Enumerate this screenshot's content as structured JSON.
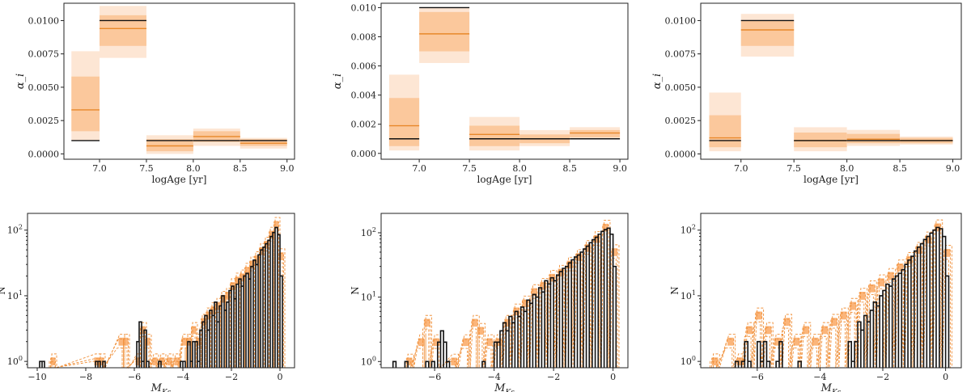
{
  "colors": {
    "truth": "#111111",
    "median": "#e8882a",
    "band_inner": "#fbc89c",
    "band_outer": "#fde6d4",
    "hist_fill": "#fbb57a",
    "hist_dash": "#f0903a"
  },
  "chart_data": [
    {
      "type": "step",
      "panel": "top-left",
      "xlabel": "logAge [yr]",
      "ylabel": "α_i",
      "xlim": [
        6.62,
        9.08
      ],
      "ylim": [
        -0.0004,
        0.0113
      ],
      "xticks": [
        "7.0",
        "7.5",
        "8.0",
        "8.5",
        "9.0"
      ],
      "yticks": [
        "0.0000",
        "0.0025",
        "0.0050",
        "0.0075",
        "0.0100"
      ],
      "bins": [
        {
          "x0": 6.7,
          "x1": 7.0,
          "truth": 0.001,
          "median": 0.0033,
          "inner": [
            0.0017,
            0.0058
          ],
          "outer": [
            0.001,
            0.0077
          ]
        },
        {
          "x0": 7.0,
          "x1": 7.5,
          "truth": 0.01,
          "median": 0.0094,
          "inner": [
            0.0081,
            0.0104
          ],
          "outer": [
            0.0072,
            0.0111
          ]
        },
        {
          "x0": 7.5,
          "x1": 8.0,
          "truth": 0.001,
          "median": 0.0006,
          "inner": [
            0.0002,
            0.0011
          ],
          "outer": [
            0.0,
            0.0014
          ]
        },
        {
          "x0": 8.0,
          "x1": 8.5,
          "truth": 0.001,
          "median": 0.0013,
          "inner": [
            0.0009,
            0.0017
          ],
          "outer": [
            0.0006,
            0.0019
          ]
        },
        {
          "x0": 8.5,
          "x1": 9.0,
          "truth": 0.001,
          "median": 0.0008,
          "inner": [
            0.0006,
            0.0011
          ],
          "outer": [
            0.0004,
            0.0012
          ]
        }
      ]
    },
    {
      "type": "step",
      "panel": "top-middle",
      "xlabel": "logAge [yr]",
      "ylabel": "α_i",
      "xlim": [
        6.62,
        9.08
      ],
      "ylim": [
        -0.0004,
        0.0103
      ],
      "xticks": [
        "7.0",
        "7.5",
        "8.0",
        "8.5",
        "9.0"
      ],
      "yticks": [
        "0.000",
        "0.002",
        "0.004",
        "0.006",
        "0.008",
        "0.010"
      ],
      "bins": [
        {
          "x0": 6.7,
          "x1": 7.0,
          "truth": 0.001,
          "median": 0.0019,
          "inner": [
            0.0005,
            0.0038
          ],
          "outer": [
            0.0002,
            0.0054
          ]
        },
        {
          "x0": 7.0,
          "x1": 7.5,
          "truth": 0.01,
          "median": 0.0082,
          "inner": [
            0.007,
            0.0097
          ],
          "outer": [
            0.0062,
            0.01
          ]
        },
        {
          "x0": 7.5,
          "x1": 8.0,
          "truth": 0.001,
          "median": 0.0013,
          "inner": [
            0.0005,
            0.0019
          ],
          "outer": [
            0.0002,
            0.0025
          ]
        },
        {
          "x0": 8.0,
          "x1": 8.5,
          "truth": 0.001,
          "median": 0.001,
          "inner": [
            0.0007,
            0.0013
          ],
          "outer": [
            0.0005,
            0.0016
          ]
        },
        {
          "x0": 8.5,
          "x1": 9.0,
          "truth": 0.001,
          "median": 0.0014,
          "inner": [
            0.0011,
            0.0016
          ],
          "outer": [
            0.001,
            0.0018
          ]
        }
      ]
    },
    {
      "type": "step",
      "panel": "top-right",
      "xlabel": "logAge [yr]",
      "ylabel": "α_i",
      "xlim": [
        6.62,
        9.08
      ],
      "ylim": [
        -0.0004,
        0.0113
      ],
      "xticks": [
        "7.0",
        "7.5",
        "8.0",
        "8.5",
        "9.0"
      ],
      "yticks": [
        "0.0000",
        "0.0025",
        "0.0050",
        "0.0075",
        "0.0100"
      ],
      "bins": [
        {
          "x0": 6.7,
          "x1": 7.0,
          "truth": 0.001,
          "median": 0.0012,
          "inner": [
            0.0005,
            0.0029
          ],
          "outer": [
            0.0002,
            0.0046
          ]
        },
        {
          "x0": 7.0,
          "x1": 7.5,
          "truth": 0.01,
          "median": 0.0093,
          "inner": [
            0.0081,
            0.01
          ],
          "outer": [
            0.0073,
            0.0105
          ]
        },
        {
          "x0": 7.5,
          "x1": 8.0,
          "truth": 0.001,
          "median": 0.001,
          "inner": [
            0.0005,
            0.0016
          ],
          "outer": [
            0.0002,
            0.002
          ]
        },
        {
          "x0": 8.0,
          "x1": 8.5,
          "truth": 0.001,
          "median": 0.0011,
          "inner": [
            0.0008,
            0.0015
          ],
          "outer": [
            0.0006,
            0.0018
          ]
        },
        {
          "x0": 8.5,
          "x1": 9.0,
          "truth": 0.001,
          "median": 0.001,
          "inner": [
            0.0008,
            0.0012
          ],
          "outer": [
            0.0007,
            0.0013
          ]
        }
      ]
    },
    {
      "type": "histogram",
      "panel": "bottom-left",
      "xlabel": "M_Ks",
      "ylabel": "N",
      "yscale": "log",
      "xlim": [
        -10.4,
        0.6
      ],
      "ylim": [
        0.8,
        180
      ],
      "xticks": [
        -10,
        -8,
        -6,
        -4,
        -2,
        0
      ],
      "yticks": [
        1,
        10,
        100
      ],
      "observed": [
        [
          -9.85,
          1
        ],
        [
          -9.75,
          1
        ],
        [
          -7.55,
          1
        ],
        [
          -7.45,
          1
        ],
        [
          -7.25,
          1
        ],
        [
          -5.85,
          2
        ],
        [
          -5.75,
          4
        ],
        [
          -5.65,
          1
        ],
        [
          -5.55,
          3
        ],
        [
          -5.45,
          1
        ],
        [
          -4.95,
          1
        ],
        [
          -4.05,
          1
        ],
        [
          -3.95,
          1
        ],
        [
          -3.75,
          2
        ],
        [
          -3.65,
          1
        ],
        [
          -3.55,
          2
        ],
        [
          -3.45,
          2
        ],
        [
          -3.35,
          1
        ],
        [
          -3.25,
          3
        ],
        [
          -3.15,
          4
        ],
        [
          -3.05,
          5
        ],
        [
          -2.95,
          3
        ],
        [
          -2.85,
          6
        ],
        [
          -2.75,
          5
        ],
        [
          -2.65,
          8
        ],
        [
          -2.55,
          4
        ],
        [
          -2.45,
          7
        ],
        [
          -2.35,
          10
        ],
        [
          -2.25,
          6
        ],
        [
          -2.15,
          8
        ],
        [
          -2.05,
          12
        ],
        [
          -1.95,
          14
        ],
        [
          -1.85,
          9
        ],
        [
          -1.75,
          15
        ],
        [
          -1.65,
          18
        ],
        [
          -1.55,
          14
        ],
        [
          -1.45,
          20
        ],
        [
          -1.35,
          22
        ],
        [
          -1.25,
          18
        ],
        [
          -1.15,
          28
        ],
        [
          -1.05,
          35
        ],
        [
          -0.95,
          30
        ],
        [
          -0.85,
          42
        ],
        [
          -0.75,
          50
        ],
        [
          -0.65,
          55
        ],
        [
          -0.55,
          62
        ],
        [
          -0.45,
          70
        ],
        [
          -0.35,
          80
        ],
        [
          -0.25,
          92
        ],
        [
          -0.15,
          110
        ],
        [
          -0.05,
          85
        ],
        [
          0.05,
          20
        ]
      ],
      "model": [
        [
          -9.35,
          1
        ],
        [
          -7.55,
          1
        ],
        [
          -7.35,
          1
        ],
        [
          -6.55,
          2
        ],
        [
          -6.35,
          2
        ],
        [
          -5.85,
          1
        ],
        [
          -5.65,
          3
        ],
        [
          -5.45,
          2
        ],
        [
          -5.15,
          1
        ],
        [
          -4.85,
          1
        ],
        [
          -4.55,
          1
        ],
        [
          -4.25,
          1
        ],
        [
          -3.95,
          2
        ],
        [
          -3.75,
          2
        ],
        [
          -3.55,
          3
        ],
        [
          -3.35,
          2
        ],
        [
          -3.15,
          4
        ],
        [
          -2.95,
          5
        ],
        [
          -2.75,
          6
        ],
        [
          -2.55,
          7
        ],
        [
          -2.35,
          9
        ],
        [
          -2.15,
          10
        ],
        [
          -1.95,
          14
        ],
        [
          -1.75,
          17
        ],
        [
          -1.55,
          19
        ],
        [
          -1.35,
          24
        ],
        [
          -1.15,
          30
        ],
        [
          -0.95,
          36
        ],
        [
          -0.75,
          48
        ],
        [
          -0.55,
          60
        ],
        [
          -0.35,
          85
        ],
        [
          -0.15,
          120
        ],
        [
          0.05,
          40
        ]
      ]
    },
    {
      "type": "histogram",
      "panel": "bottom-middle",
      "xlabel": "M_Ks",
      "ylabel": "N",
      "yscale": "log",
      "xlim": [
        -7.8,
        0.5
      ],
      "ylim": [
        0.8,
        200
      ],
      "xticks": [
        -6,
        -4,
        -2,
        0
      ],
      "yticks": [
        1,
        10,
        100
      ],
      "observed": [
        [
          -7.35,
          1
        ],
        [
          -6.95,
          1
        ],
        [
          -6.25,
          1
        ],
        [
          -6.05,
          1
        ],
        [
          -5.85,
          2
        ],
        [
          -5.75,
          3
        ],
        [
          -5.65,
          2
        ],
        [
          -5.55,
          1
        ],
        [
          -4.35,
          1
        ],
        [
          -3.95,
          2
        ],
        [
          -3.85,
          2
        ],
        [
          -3.75,
          3
        ],
        [
          -3.65,
          4
        ],
        [
          -3.55,
          3
        ],
        [
          -3.45,
          5
        ],
        [
          -3.35,
          4
        ],
        [
          -3.25,
          6
        ],
        [
          -3.15,
          5
        ],
        [
          -3.05,
          7
        ],
        [
          -2.95,
          6
        ],
        [
          -2.85,
          9
        ],
        [
          -2.75,
          8
        ],
        [
          -2.65,
          11
        ],
        [
          -2.55,
          10
        ],
        [
          -2.45,
          14
        ],
        [
          -2.35,
          12
        ],
        [
          -2.25,
          18
        ],
        [
          -2.15,
          16
        ],
        [
          -2.05,
          20
        ],
        [
          -1.95,
          18
        ],
        [
          -1.85,
          22
        ],
        [
          -1.75,
          25
        ],
        [
          -1.65,
          28
        ],
        [
          -1.55,
          30
        ],
        [
          -1.45,
          34
        ],
        [
          -1.35,
          38
        ],
        [
          -1.25,
          42
        ],
        [
          -1.15,
          45
        ],
        [
          -1.05,
          50
        ],
        [
          -0.95,
          56
        ],
        [
          -0.85,
          62
        ],
        [
          -0.75,
          70
        ],
        [
          -0.65,
          78
        ],
        [
          -0.55,
          85
        ],
        [
          -0.45,
          95
        ],
        [
          -0.35,
          105
        ],
        [
          -0.25,
          112
        ],
        [
          -0.15,
          118
        ],
        [
          -0.05,
          95
        ],
        [
          0.05,
          30
        ]
      ],
      "model": [
        [
          -6.85,
          1
        ],
        [
          -6.45,
          2
        ],
        [
          -6.25,
          4
        ],
        [
          -5.95,
          2
        ],
        [
          -5.35,
          1
        ],
        [
          -4.95,
          2
        ],
        [
          -4.65,
          4
        ],
        [
          -4.45,
          3
        ],
        [
          -4.15,
          2
        ],
        [
          -3.85,
          2
        ],
        [
          -3.55,
          4
        ],
        [
          -3.25,
          6
        ],
        [
          -2.95,
          8
        ],
        [
          -2.65,
          12
        ],
        [
          -2.35,
          15
        ],
        [
          -2.05,
          20
        ],
        [
          -1.75,
          24
        ],
        [
          -1.45,
          32
        ],
        [
          -1.15,
          42
        ],
        [
          -0.85,
          58
        ],
        [
          -0.55,
          80
        ],
        [
          -0.25,
          120
        ],
        [
          0.05,
          50
        ]
      ]
    },
    {
      "type": "histogram",
      "panel": "bottom-right",
      "xlabel": "M_Ks",
      "ylabel": "N",
      "yscale": "log",
      "xlim": [
        -7.8,
        0.5
      ],
      "ylim": [
        0.8,
        180
      ],
      "xticks": [
        -6,
        -4,
        -2,
        0
      ],
      "yticks": [
        1,
        10,
        100
      ],
      "observed": [
        [
          -6.65,
          1
        ],
        [
          -6.45,
          1
        ],
        [
          -6.35,
          2
        ],
        [
          -6.25,
          1
        ],
        [
          -5.95,
          2
        ],
        [
          -5.85,
          1
        ],
        [
          -5.75,
          2
        ],
        [
          -5.65,
          1
        ],
        [
          -5.35,
          1
        ],
        [
          -5.25,
          2
        ],
        [
          -4.65,
          1
        ],
        [
          -3.05,
          2
        ],
        [
          -2.95,
          1
        ],
        [
          -2.85,
          2
        ],
        [
          -2.75,
          4
        ],
        [
          -2.65,
          3
        ],
        [
          -2.55,
          5
        ],
        [
          -2.45,
          4
        ],
        [
          -2.35,
          6
        ],
        [
          -2.25,
          8
        ],
        [
          -2.15,
          7
        ],
        [
          -2.05,
          10
        ],
        [
          -1.95,
          12
        ],
        [
          -1.85,
          15
        ],
        [
          -1.75,
          14
        ],
        [
          -1.65,
          18
        ],
        [
          -1.55,
          20
        ],
        [
          -1.45,
          22
        ],
        [
          -1.35,
          25
        ],
        [
          -1.25,
          30
        ],
        [
          -1.15,
          35
        ],
        [
          -1.05,
          40
        ],
        [
          -0.95,
          48
        ],
        [
          -0.85,
          55
        ],
        [
          -0.75,
          62
        ],
        [
          -0.65,
          72
        ],
        [
          -0.55,
          80
        ],
        [
          -0.45,
          90
        ],
        [
          -0.35,
          100
        ],
        [
          -0.25,
          110
        ],
        [
          -0.15,
          105
        ],
        [
          -0.05,
          80
        ],
        [
          0.05,
          20
        ]
      ],
      "model": [
        [
          -7.35,
          1
        ],
        [
          -6.85,
          2
        ],
        [
          -6.55,
          1
        ],
        [
          -6.25,
          3
        ],
        [
          -5.95,
          5
        ],
        [
          -5.65,
          3
        ],
        [
          -5.35,
          2
        ],
        [
          -5.05,
          4
        ],
        [
          -4.75,
          2
        ],
        [
          -4.45,
          3
        ],
        [
          -4.15,
          2
        ],
        [
          -3.85,
          3
        ],
        [
          -3.55,
          4
        ],
        [
          -3.25,
          5
        ],
        [
          -2.95,
          7
        ],
        [
          -2.65,
          10
        ],
        [
          -2.35,
          13
        ],
        [
          -2.05,
          16
        ],
        [
          -1.75,
          20
        ],
        [
          -1.45,
          27
        ],
        [
          -1.15,
          35
        ],
        [
          -0.85,
          50
        ],
        [
          -0.55,
          72
        ],
        [
          -0.25,
          110
        ],
        [
          0.05,
          45
        ]
      ]
    }
  ]
}
